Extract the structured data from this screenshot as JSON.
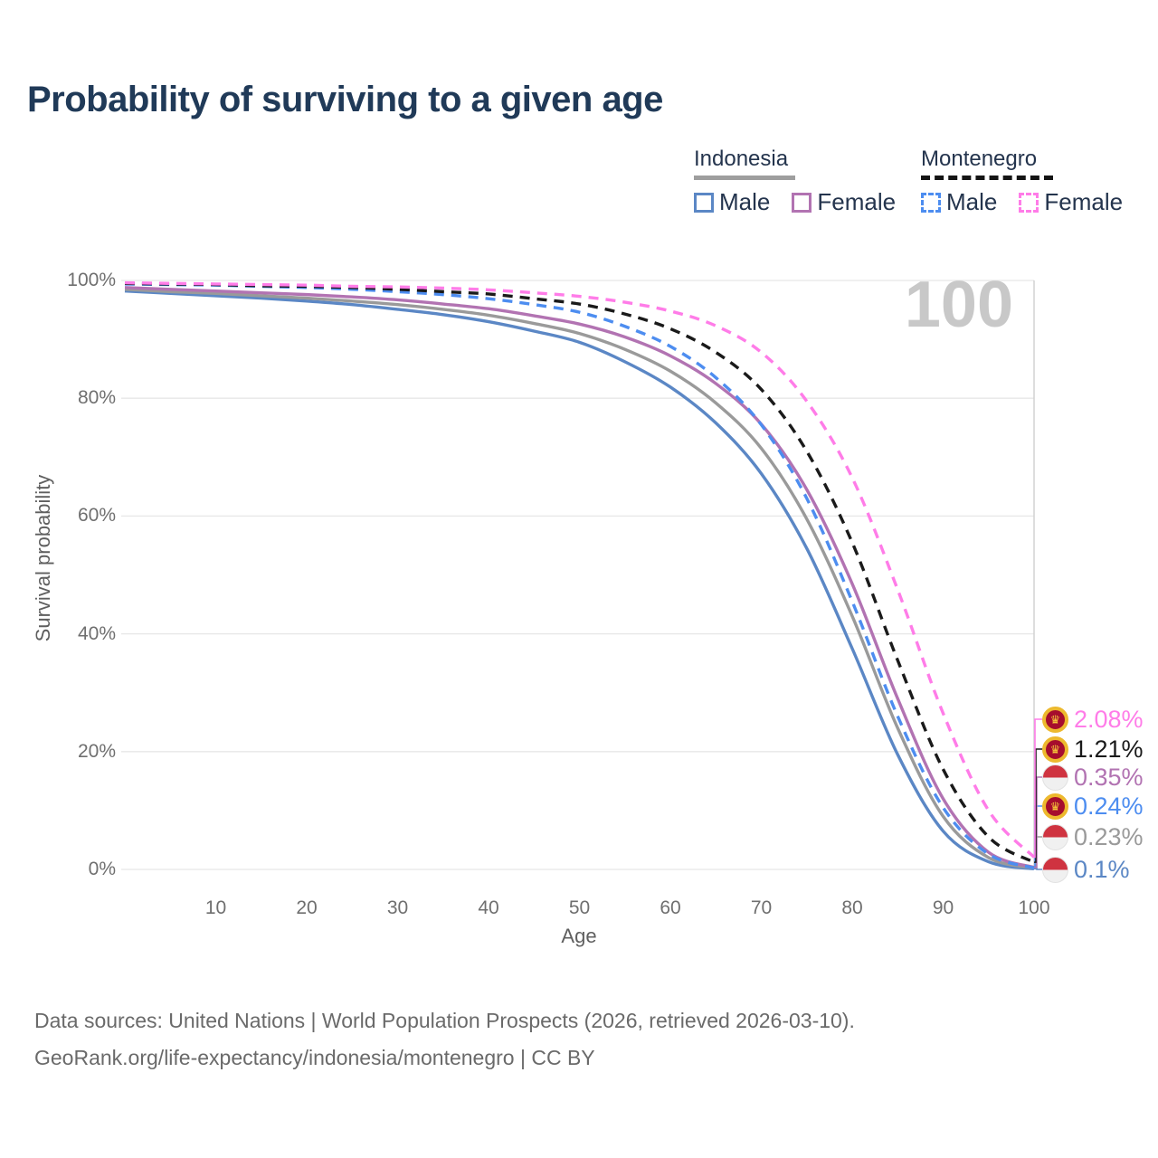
{
  "title": "Probability of surviving to a given age",
  "watermark_age": "100",
  "legend": {
    "groups": [
      {
        "country": "Indonesia",
        "line_style": "solid",
        "underline_color": "#9e9e9e",
        "items": [
          {
            "label": "Male",
            "color": "#5b87c5",
            "dashed": false
          },
          {
            "label": "Female",
            "color": "#b273b2",
            "dashed": false
          }
        ]
      },
      {
        "country": "Montenegro",
        "line_style": "dashed",
        "underline_color": "#141414",
        "items": [
          {
            "label": "Male",
            "color": "#4d8df0",
            "dashed": true
          },
          {
            "label": "Female",
            "color": "#ff7ce8",
            "dashed": true
          }
        ]
      }
    ]
  },
  "axes": {
    "y": {
      "title": "Survival probability",
      "ticks": [
        "0%",
        "20%",
        "40%",
        "60%",
        "80%",
        "100%"
      ],
      "tick_values": [
        0,
        20,
        40,
        60,
        80,
        100
      ]
    },
    "x": {
      "title": "Age",
      "ticks": [
        "10",
        "20",
        "30",
        "40",
        "50",
        "60",
        "70",
        "80",
        "90",
        "100"
      ],
      "tick_values": [
        10,
        20,
        30,
        40,
        50,
        60,
        70,
        80,
        90,
        100
      ]
    }
  },
  "end_labels": [
    {
      "text": "2.08%",
      "color": "#ff7ce8",
      "flag": "montenegro",
      "series": "Montenegro Female"
    },
    {
      "text": "1.21%",
      "color": "#1a1a1a",
      "flag": "montenegro",
      "series": "Montenegro"
    },
    {
      "text": "0.35%",
      "color": "#b273b2",
      "flag": "indonesia",
      "series": "Indonesia Female"
    },
    {
      "text": "0.24%",
      "color": "#4d8df0",
      "flag": "montenegro",
      "series": "Montenegro Male"
    },
    {
      "text": "0.23%",
      "color": "#9a9a9a",
      "flag": "indonesia",
      "series": "Indonesia"
    },
    {
      "text": "0.1%",
      "color": "#5b87c5",
      "flag": "indonesia",
      "series": "Indonesia Male"
    }
  ],
  "footer": {
    "line1": "Data sources: United Nations | World Population Prospects (2026, retrieved 2026-03-10).",
    "line2": "GeoRank.org/life-expectancy/indonesia/montenegro | CC BY"
  },
  "chart_data": {
    "type": "line",
    "title": "Probability of surviving to a given age",
    "xlabel": "Age",
    "ylabel": "Survival probability",
    "xlim": [
      0,
      100
    ],
    "ylim": [
      0,
      100
    ],
    "y_unit": "%",
    "grid": "horizontal",
    "highlight_age": 100,
    "ages": [
      0,
      5,
      10,
      15,
      20,
      25,
      30,
      35,
      40,
      45,
      50,
      55,
      60,
      65,
      70,
      75,
      80,
      85,
      90,
      95,
      100
    ],
    "series": [
      {
        "name": "Indonesia Male",
        "country": "Indonesia",
        "sex": "Male",
        "color": "#5b87c5",
        "dash": "solid",
        "end_value_pct": 0.1,
        "values": [
          98.2,
          97.8,
          97.4,
          97.0,
          96.5,
          95.9,
          95.1,
          94.2,
          93.0,
          91.4,
          89.5,
          86.2,
          81.9,
          75.8,
          67.2,
          54.5,
          37.5,
          19.5,
          6.5,
          1.3,
          0.1
        ]
      },
      {
        "name": "Indonesia",
        "country": "Indonesia",
        "sex": "Both",
        "color": "#9a9a9a",
        "dash": "solid",
        "end_value_pct": 0.23,
        "values": [
          98.5,
          98.1,
          97.8,
          97.4,
          97.0,
          96.5,
          95.9,
          95.1,
          94.1,
          92.7,
          91.0,
          88.3,
          84.6,
          79.2,
          71.5,
          59.5,
          43.0,
          24.0,
          9.0,
          2.0,
          0.23
        ]
      },
      {
        "name": "Indonesia Female",
        "country": "Indonesia",
        "sex": "Female",
        "color": "#b273b2",
        "dash": "solid",
        "end_value_pct": 0.35,
        "values": [
          98.8,
          98.5,
          98.2,
          97.9,
          97.6,
          97.2,
          96.7,
          96.0,
          95.2,
          94.0,
          92.6,
          90.4,
          87.2,
          82.5,
          75.6,
          64.5,
          48.5,
          29.0,
          12.0,
          2.9,
          0.35
        ]
      },
      {
        "name": "Montenegro Male",
        "country": "Montenegro",
        "sex": "Male",
        "color": "#4d8df0",
        "dash": "dashed",
        "end_value_pct": 0.24,
        "values": [
          99.4,
          99.3,
          99.2,
          99.0,
          98.8,
          98.5,
          98.1,
          97.6,
          96.9,
          95.9,
          94.6,
          92.2,
          88.8,
          83.5,
          75.5,
          63.0,
          45.5,
          26.0,
          10.5,
          2.6,
          0.24
        ]
      },
      {
        "name": "Montenegro",
        "country": "Montenegro",
        "sex": "Both",
        "color": "#1a1a1a",
        "dash": "dashed",
        "end_value_pct": 1.21,
        "values": [
          99.5,
          99.4,
          99.3,
          99.1,
          99.0,
          98.8,
          98.5,
          98.1,
          97.7,
          96.9,
          96.0,
          94.3,
          91.8,
          87.8,
          81.5,
          71.0,
          55.5,
          35.5,
          17.0,
          5.5,
          1.21
        ]
      },
      {
        "name": "Montenegro Female",
        "country": "Montenegro",
        "sex": "Female",
        "color": "#ff7ce8",
        "dash": "dashed",
        "end_value_pct": 2.08,
        "values": [
          99.6,
          99.5,
          99.4,
          99.3,
          99.2,
          99.0,
          98.9,
          98.7,
          98.4,
          97.9,
          97.3,
          96.3,
          94.8,
          92.3,
          87.8,
          79.5,
          66.5,
          47.5,
          26.5,
          10.0,
          2.08
        ]
      }
    ]
  }
}
